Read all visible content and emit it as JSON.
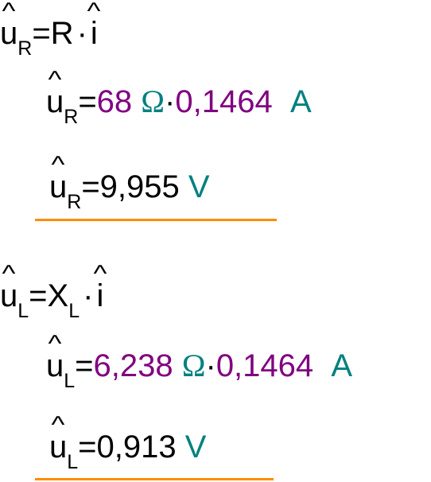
{
  "colors": {
    "number": "#800080",
    "unit": "#008080",
    "underline": "#ff8c00"
  },
  "equations": {
    "ur_formula": {
      "lhs": "u",
      "lhs_sub": "R",
      "equals": "=",
      "r": "R",
      "dot": "·",
      "i": "i"
    },
    "ur_substituted": {
      "lhs": "u",
      "lhs_sub": "R",
      "equals": "=",
      "value1": "68",
      "unit1": "Ω",
      "dot": "·",
      "value2": "0,1464",
      "unit2": "A"
    },
    "ur_result": {
      "lhs": "u",
      "lhs_sub": "R",
      "equals": "=",
      "value": "9,955",
      "unit": "V"
    },
    "ul_formula": {
      "lhs": "u",
      "lhs_sub": "L",
      "equals": "=",
      "x": "X",
      "x_sub": "L",
      "dot": "·",
      "i": "i"
    },
    "ul_substituted": {
      "lhs": "u",
      "lhs_sub": "L",
      "equals": "=",
      "value1": "6,238",
      "unit1": "Ω",
      "dot": "·",
      "value2": "0,1464",
      "unit2": "A"
    },
    "ul_result": {
      "lhs": "u",
      "lhs_sub": "L",
      "equals": "=",
      "value": "0,913",
      "unit": "V"
    }
  }
}
